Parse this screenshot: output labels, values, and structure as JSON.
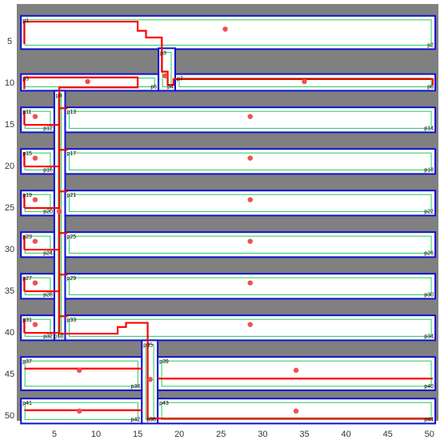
{
  "colors": {
    "obstacle": "#808080",
    "room_border": "#1010d0",
    "route": "#ff0000",
    "inner_path": "#22cc55",
    "centroid": "#f05050",
    "axis_text": "#333333"
  },
  "axes": {
    "x_ticks": [
      "5",
      "10",
      "15",
      "20",
      "25",
      "30",
      "35",
      "40",
      "45",
      "50"
    ],
    "y_ticks": [
      "5",
      "10",
      "15",
      "20",
      "25",
      "30",
      "35",
      "40",
      "45",
      "50"
    ]
  },
  "polygons": [
    {
      "id": "p1",
      "label": "p1",
      "right_label": "p2",
      "x1": 1,
      "y1": 2,
      "x2": 50.7,
      "y2": 6,
      "cx": 25.5,
      "cy": 3.6
    },
    {
      "id": "p5",
      "label": "p5",
      "right_label": "p6",
      "x1": 1,
      "y1": 9,
      "x2": 17.5,
      "y2": 11,
      "cx": 9,
      "cy": 9.9
    },
    {
      "id": "p7",
      "label": "p7",
      "right_label": "p8",
      "x1": 19.5,
      "y1": 9,
      "x2": 50.7,
      "y2": 11,
      "cx": 35,
      "cy": 9.9
    },
    {
      "id": "p11",
      "label": "p11",
      "right_label": "p12",
      "x1": 1,
      "y1": 13,
      "x2": 5,
      "y2": 16,
      "cx": 2.7,
      "cy": 14.1
    },
    {
      "id": "p13",
      "label": "p13",
      "right_label": "p14",
      "x1": 6.3,
      "y1": 13,
      "x2": 50.7,
      "y2": 16,
      "cx": 28.5,
      "cy": 14.1
    },
    {
      "id": "p15",
      "label": "p15",
      "right_label": "p16",
      "x1": 1,
      "y1": 18,
      "x2": 5,
      "y2": 21,
      "cx": 2.7,
      "cy": 19.1
    },
    {
      "id": "p17",
      "label": "p17",
      "right_label": "p18",
      "x1": 6.3,
      "y1": 18,
      "x2": 50.7,
      "y2": 21,
      "cx": 28.5,
      "cy": 19.1
    },
    {
      "id": "p19",
      "label": "p19",
      "right_label": "p20",
      "x1": 1,
      "y1": 23,
      "x2": 5,
      "y2": 26,
      "cx": 2.7,
      "cy": 24.1
    },
    {
      "id": "p21",
      "label": "p21",
      "right_label": "p22",
      "x1": 6.3,
      "y1": 23,
      "x2": 50.7,
      "y2": 26,
      "cx": 28.5,
      "cy": 24.1
    },
    {
      "id": "p23",
      "label": "p23",
      "right_label": "p24",
      "x1": 1,
      "y1": 28,
      "x2": 5,
      "y2": 31,
      "cx": 2.7,
      "cy": 29.1
    },
    {
      "id": "p25",
      "label": "p25",
      "right_label": "p26",
      "x1": 6.3,
      "y1": 28,
      "x2": 50.7,
      "y2": 31,
      "cx": 28.5,
      "cy": 29.1
    },
    {
      "id": "p27",
      "label": "p27",
      "right_label": "p28",
      "x1": 1,
      "y1": 33,
      "x2": 5,
      "y2": 36,
      "cx": 2.7,
      "cy": 34.1
    },
    {
      "id": "p29",
      "label": "p29",
      "right_label": "p30",
      "x1": 6.3,
      "y1": 33,
      "x2": 50.7,
      "y2": 36,
      "cx": 28.5,
      "cy": 34.1
    },
    {
      "id": "p31",
      "label": "p31",
      "right_label": "p32",
      "x1": 1,
      "y1": 38,
      "x2": 5,
      "y2": 41,
      "cx": 2.7,
      "cy": 39.1
    },
    {
      "id": "p33",
      "label": "p33",
      "right_label": "p34",
      "x1": 6.3,
      "y1": 38,
      "x2": 50.7,
      "y2": 41,
      "cx": 28.5,
      "cy": 39.1
    },
    {
      "id": "p37",
      "label": "p37",
      "right_label": "p38",
      "x1": 1,
      "y1": 43,
      "x2": 15.5,
      "y2": 47,
      "cx": 8,
      "cy": 44.6
    },
    {
      "id": "p39",
      "label": "p39",
      "right_label": "p40",
      "x1": 17.4,
      "y1": 43,
      "x2": 50.7,
      "y2": 47,
      "cx": 34,
      "cy": 44.6
    },
    {
      "id": "p41",
      "label": "p41",
      "right_label": "p42",
      "x1": 1,
      "y1": 48,
      "x2": 15.5,
      "y2": 51,
      "cx": 8,
      "cy": 49.5
    },
    {
      "id": "p43",
      "label": "p43",
      "right_label": "p44",
      "x1": 17.4,
      "y1": 48,
      "x2": 50.7,
      "y2": 51,
      "cx": 34,
      "cy": 49.5
    },
    {
      "id": "p3",
      "label": "p3",
      "right_label": "p4",
      "x1": 17.5,
      "y1": 5.9,
      "x2": 19.5,
      "y2": 11,
      "cx": 18.3,
      "cy": 9.2
    },
    {
      "id": "p9",
      "label": "p9",
      "right_label": "p10",
      "x1": 5,
      "y1": 11,
      "x2": 6.3,
      "y2": 41,
      "cx": 5.6,
      "cy": 25.5
    },
    {
      "id": "p35",
      "label": "p35",
      "right_label": "p36",
      "x1": 15.5,
      "y1": 41,
      "x2": 17.4,
      "y2": 51,
      "cx": 16.5,
      "cy": 45.7
    }
  ],
  "route": [
    [
      1.4,
      5.4
    ],
    [
      1.4,
      2.7
    ],
    [
      15,
      2.7
    ],
    [
      15,
      3.8
    ],
    [
      16,
      3.8
    ],
    [
      16,
      4.6
    ],
    [
      17.9,
      4.6
    ],
    [
      17.9,
      8.7
    ],
    [
      18.6,
      8.7
    ],
    [
      18.6,
      10.3
    ],
    [
      19.3,
      10.3
    ],
    [
      19.3,
      9.6
    ],
    [
      50.4,
      9.6
    ],
    [
      50.4,
      10.3
    ]
  ],
  "route_b": [
    [
      1.4,
      10.8
    ],
    [
      1.4,
      9.4
    ],
    [
      15,
      9.4
    ],
    [
      15,
      10.6
    ],
    [
      5.6,
      10.6
    ],
    [
      5.6,
      40.2
    ],
    [
      12.6,
      40.2
    ],
    [
      12.6,
      39.4
    ],
    [
      13.6,
      39.4
    ],
    [
      13.6,
      38.9
    ],
    [
      16.2,
      38.9
    ],
    [
      16.2,
      50.4
    ],
    [
      50.4,
      50.4
    ]
  ],
  "route_left_ticks": [
    14.6,
    19.6,
    24.6,
    29.6,
    34.6,
    39.6
  ],
  "route_bottom_branches": [
    [
      1.4,
      44.4,
      15.5,
      44.4
    ],
    [
      1.4,
      49.4,
      15.5,
      49.4
    ],
    [
      17.4,
      45.6,
      50.4,
      45.6
    ]
  ]
}
